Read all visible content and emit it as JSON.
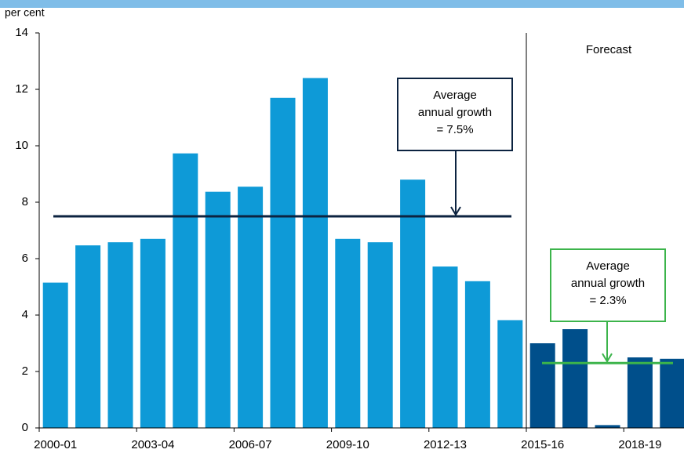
{
  "chart_data": {
    "type": "bar",
    "y_label": "per cent",
    "categories": [
      "2000-01",
      null,
      null,
      "2003-04",
      null,
      null,
      "2006-07",
      null,
      null,
      "2009-10",
      null,
      null,
      "2012-13",
      null,
      null,
      "2015-16",
      null,
      null,
      "2018-19",
      null
    ],
    "values": [
      5.15,
      6.47,
      6.58,
      6.7,
      9.73,
      8.37,
      8.55,
      11.7,
      12.4,
      6.7,
      6.58,
      8.8,
      5.72,
      5.2,
      3.82,
      3.0,
      3.5,
      0.1,
      2.5,
      2.45
    ],
    "colors": [
      "#0e9ad7",
      "#0e9ad7",
      "#0e9ad7",
      "#0e9ad7",
      "#0e9ad7",
      "#0e9ad7",
      "#0e9ad7",
      "#0e9ad7",
      "#0e9ad7",
      "#0e9ad7",
      "#0e9ad7",
      "#0e9ad7",
      "#0e9ad7",
      "#0e9ad7",
      "#0e9ad7",
      "#004f8b",
      "#004f8b",
      "#004f8b",
      "#004f8b",
      "#004f8b"
    ],
    "ylim": [
      0,
      14
    ],
    "yticks": [
      0,
      2,
      4,
      6,
      8,
      10,
      12,
      14
    ],
    "grid": false,
    "forecast_label": "Forecast",
    "annotations": [
      {
        "lines": [
          "Average",
          "annual growth",
          "= 7.5%"
        ],
        "value": 7.5,
        "color": "#0c2340"
      },
      {
        "lines": [
          "Average",
          "annual growth",
          "= 2.3%"
        ],
        "value": 2.3,
        "color": "#3cb44b"
      }
    ]
  }
}
